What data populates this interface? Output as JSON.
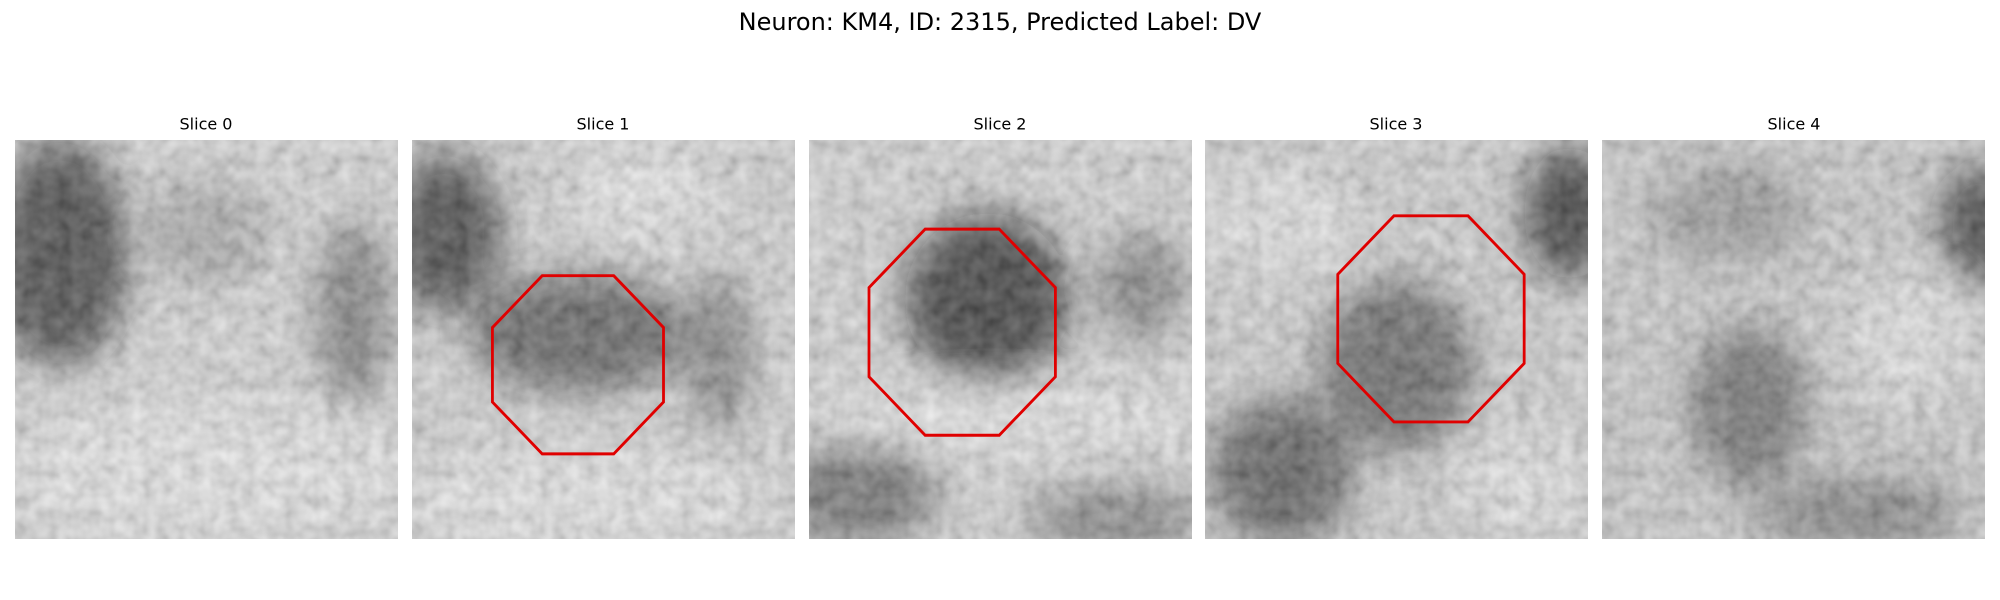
{
  "title": "Neuron: KM4, ID: 2315, Predicted Label: DV",
  "panels": [
    {
      "title": "Slice 0"
    },
    {
      "title": "Slice 1"
    },
    {
      "title": "Slice 2"
    },
    {
      "title": "Slice 3"
    },
    {
      "title": "Slice 4"
    }
  ]
}
